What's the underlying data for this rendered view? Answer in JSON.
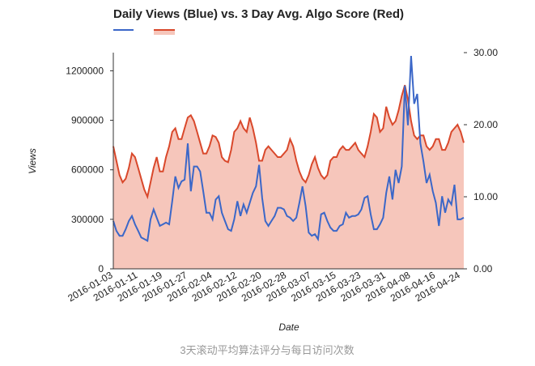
{
  "chart_data": {
    "type": "line",
    "title": "Daily Views (Blue) vs. 3 Day Avg. Algo Score (Red)",
    "x_label": "Date",
    "y_label": "Views",
    "caption": "3天滚动平均算法评分与每日访问次数",
    "x": [
      "2016-01-03",
      "2016-01-04",
      "2016-01-05",
      "2016-01-06",
      "2016-01-07",
      "2016-01-08",
      "2016-01-09",
      "2016-01-10",
      "2016-01-11",
      "2016-01-12",
      "2016-01-13",
      "2016-01-14",
      "2016-01-15",
      "2016-01-16",
      "2016-01-17",
      "2016-01-18",
      "2016-01-19",
      "2016-01-20",
      "2016-01-21",
      "2016-01-22",
      "2016-01-23",
      "2016-01-24",
      "2016-01-25",
      "2016-01-26",
      "2016-01-27",
      "2016-01-28",
      "2016-01-29",
      "2016-01-30",
      "2016-01-31",
      "2016-02-01",
      "2016-02-02",
      "2016-02-03",
      "2016-02-04",
      "2016-02-05",
      "2016-02-06",
      "2016-02-07",
      "2016-02-08",
      "2016-02-09",
      "2016-02-10",
      "2016-02-11",
      "2016-02-12",
      "2016-02-13",
      "2016-02-14",
      "2016-02-15",
      "2016-02-16",
      "2016-02-17",
      "2016-02-18",
      "2016-02-19",
      "2016-02-20",
      "2016-02-21",
      "2016-02-22",
      "2016-02-23",
      "2016-02-24",
      "2016-02-25",
      "2016-02-26",
      "2016-02-27",
      "2016-02-28",
      "2016-02-29",
      "2016-03-01",
      "2016-03-02",
      "2016-03-03",
      "2016-03-04",
      "2016-03-05",
      "2016-03-06",
      "2016-03-07",
      "2016-03-08",
      "2016-03-09",
      "2016-03-10",
      "2016-03-11",
      "2016-03-12",
      "2016-03-13",
      "2016-03-14",
      "2016-03-15",
      "2016-03-16",
      "2016-03-17",
      "2016-03-18",
      "2016-03-19",
      "2016-03-20",
      "2016-03-21",
      "2016-03-22",
      "2016-03-23",
      "2016-03-24",
      "2016-03-25",
      "2016-03-26",
      "2016-03-27",
      "2016-03-28",
      "2016-03-29",
      "2016-03-30",
      "2016-03-31",
      "2016-04-01",
      "2016-04-02",
      "2016-04-03",
      "2016-04-04",
      "2016-04-05",
      "2016-04-06",
      "2016-04-07",
      "2016-04-08",
      "2016-04-09",
      "2016-04-10",
      "2016-04-11",
      "2016-04-12",
      "2016-04-13",
      "2016-04-14",
      "2016-04-15",
      "2016-04-16",
      "2016-04-17",
      "2016-04-18",
      "2016-04-19",
      "2016-04-20",
      "2016-04-21",
      "2016-04-22",
      "2016-04-23",
      "2016-04-24",
      "2016-04-25"
    ],
    "tick_every": 8,
    "ylim": [
      0,
      1310000
    ],
    "yticks": [
      0,
      300000,
      600000,
      900000,
      1200000
    ],
    "y2lim": [
      0,
      30
    ],
    "y2ticks": [
      {
        "value": 0,
        "label": "0.00"
      },
      {
        "value": 10,
        "label": "10.00"
      },
      {
        "value": 20,
        "label": "20.00"
      },
      {
        "value": 30,
        "label": "30.00"
      }
    ],
    "series": [
      {
        "color": "#d9482b",
        "fill": "#f6c6bb",
        "axis": "y2",
        "kind": "area",
        "values": [
          17,
          15,
          13,
          12,
          12.5,
          14,
          16,
          15.5,
          14,
          12.5,
          11,
          10,
          12,
          14,
          15.5,
          13.5,
          13.5,
          15.5,
          17,
          19,
          19.5,
          18,
          18,
          19.5,
          21,
          21.3,
          20.5,
          19,
          17.5,
          16,
          16,
          17,
          18.5,
          18.3,
          17.5,
          15.5,
          15,
          14.8,
          16.5,
          19,
          19.5,
          20.5,
          19.5,
          19,
          21,
          19.5,
          17.5,
          15,
          15,
          16.5,
          17,
          16.5,
          16,
          15.5,
          15.5,
          16,
          16.5,
          18,
          17,
          15,
          13.5,
          12.5,
          12,
          13,
          14.5,
          15.5,
          14,
          13,
          12.5,
          13,
          15,
          15.5,
          15.5,
          16.5,
          17,
          16.5,
          16.5,
          17,
          17.5,
          16.5,
          16,
          15.5,
          17,
          19,
          21.5,
          21,
          19,
          19.5,
          22.5,
          21,
          20,
          20.5,
          22,
          24,
          25.5,
          23.5,
          20.5,
          18.5,
          18,
          18.5,
          18.5,
          17,
          16.5,
          17,
          18,
          18,
          16.5,
          16.5,
          17.5,
          19,
          19.5,
          20,
          19,
          17.5
        ]
      },
      {
        "color": "#3b67c8",
        "axis": "y",
        "kind": "line",
        "values": [
          290000,
          230000,
          200000,
          200000,
          240000,
          290000,
          320000,
          270000,
          230000,
          190000,
          180000,
          170000,
          300000,
          360000,
          310000,
          260000,
          270000,
          280000,
          270000,
          410000,
          560000,
          490000,
          530000,
          540000,
          760000,
          470000,
          620000,
          620000,
          590000,
          470000,
          340000,
          340000,
          300000,
          420000,
          440000,
          340000,
          290000,
          240000,
          230000,
          300000,
          410000,
          320000,
          390000,
          340000,
          400000,
          460000,
          500000,
          630000,
          430000,
          290000,
          260000,
          290000,
          320000,
          370000,
          370000,
          360000,
          320000,
          310000,
          290000,
          310000,
          400000,
          500000,
          380000,
          220000,
          200000,
          210000,
          180000,
          330000,
          340000,
          290000,
          250000,
          230000,
          230000,
          260000,
          270000,
          340000,
          310000,
          320000,
          320000,
          330000,
          360000,
          430000,
          440000,
          330000,
          240000,
          240000,
          270000,
          310000,
          460000,
          560000,
          420000,
          600000,
          520000,
          620000,
          1110000,
          870000,
          1290000,
          1000000,
          1060000,
          760000,
          650000,
          520000,
          570000,
          470000,
          400000,
          260000,
          440000,
          340000,
          420000,
          390000,
          510000,
          300000,
          300000,
          310000
        ]
      }
    ]
  }
}
